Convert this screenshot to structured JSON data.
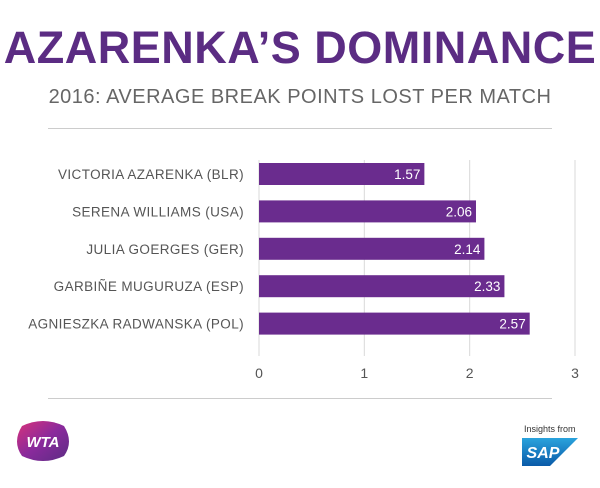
{
  "header": {
    "title": "AZARENKA’S DOMINANCE",
    "subtitle": "2016: AVERAGE BREAK POINTS LOST PER MATCH"
  },
  "chart_data": {
    "type": "bar",
    "orientation": "horizontal",
    "categories": [
      "VICTORIA AZARENKA (BLR)",
      "SERENA WILLIAMS (USA)",
      "JULIA GOERGES (GER)",
      "GARBIÑE MUGURUZA (ESP)",
      "AGNIESZKA RADWANSKA (POL)"
    ],
    "values": [
      1.57,
      2.06,
      2.14,
      2.33,
      2.57
    ],
    "value_labels": [
      "1.57",
      "2.06",
      "2.14",
      "2.33",
      "2.57"
    ],
    "xlim": [
      0,
      3
    ],
    "ticks": [
      "0",
      "1",
      "2",
      "3"
    ],
    "grid": true,
    "bar_color": "#6a2c8e"
  },
  "footer": {
    "left_logo": "WTA",
    "right_logo_caption": "Insights from",
    "right_logo": "SAP"
  },
  "colors": {
    "title": "#5b2c83",
    "subtitle": "#666666",
    "axis_text": "#555555",
    "grid": "#d9d9d9"
  }
}
